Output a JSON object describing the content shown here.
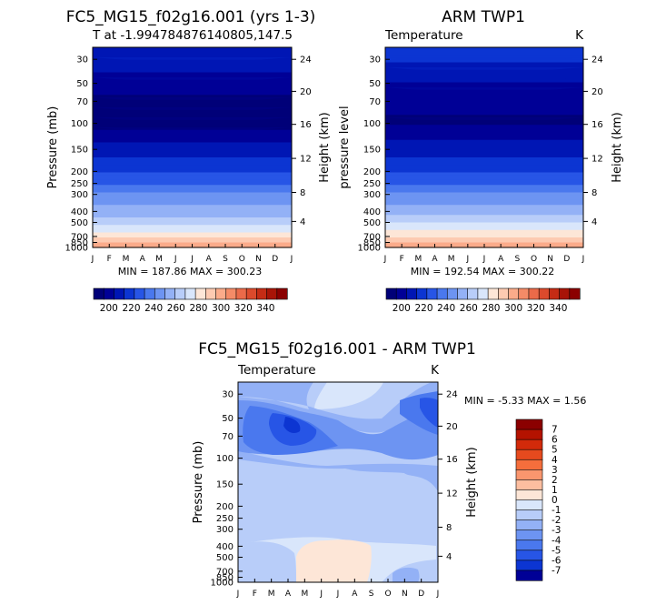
{
  "chart_data": [
    {
      "type": "heatmap",
      "title": "FC5_MG15_f02g16.001 (yrs 1-3)",
      "subtitle": "T at -1.994784876140805,147.5",
      "ylabel": "Pressure (mb)",
      "ylabel_right": "Height (km)",
      "x_ticks": [
        "J",
        "F",
        "M",
        "A",
        "M",
        "J",
        "J",
        "A",
        "S",
        "O",
        "N",
        "D",
        "J"
      ],
      "y_ticks": [
        "30",
        "50",
        "70",
        "100",
        "150",
        "200",
        "250",
        "300",
        "400",
        "500",
        "700",
        "850",
        "1000"
      ],
      "height_ticks": [
        "24",
        "20",
        "16",
        "12",
        "8",
        "4"
      ],
      "ylim": [
        1000,
        20
      ],
      "min_max_text": "MIN = 187.86 MAX = 300.23",
      "min": 187.86,
      "max": 300.23,
      "colorbar_ticks": [
        "200",
        "220",
        "240",
        "260",
        "280",
        "300",
        "320",
        "340"
      ],
      "profile": [
        {
          "p": 20,
          "t": 207
        },
        {
          "p": 30,
          "t": 210
        },
        {
          "p": 50,
          "t": 197
        },
        {
          "p": 70,
          "t": 192
        },
        {
          "p": 100,
          "t": 190
        },
        {
          "p": 150,
          "t": 207
        },
        {
          "p": 200,
          "t": 220
        },
        {
          "p": 250,
          "t": 228
        },
        {
          "p": 300,
          "t": 240
        },
        {
          "p": 400,
          "t": 252
        },
        {
          "p": 500,
          "t": 263
        },
        {
          "p": 700,
          "t": 281
        },
        {
          "p": 850,
          "t": 292
        },
        {
          "p": 1000,
          "t": 300
        }
      ]
    },
    {
      "type": "heatmap",
      "title": "ARM TWP1",
      "subtitle_left": "Temperature",
      "subtitle_right": "K",
      "ylabel": "pressure level",
      "ylabel_right": "Height (km)",
      "x_ticks": [
        "J",
        "F",
        "M",
        "A",
        "M",
        "J",
        "J",
        "A",
        "S",
        "O",
        "N",
        "D",
        "J"
      ],
      "y_ticks": [
        "30",
        "50",
        "70",
        "100",
        "150",
        "200",
        "250",
        "300",
        "400",
        "500",
        "700",
        "850",
        "1000"
      ],
      "height_ticks": [
        "24",
        "20",
        "16",
        "12",
        "8",
        "4"
      ],
      "ylim": [
        1000,
        20
      ],
      "min_max_text": "MIN = 192.54 MAX = 300.22",
      "min": 192.54,
      "max": 300.22,
      "colorbar_ticks": [
        "200",
        "220",
        "240",
        "260",
        "280",
        "300",
        "320",
        "340"
      ],
      "profile": [
        {
          "p": 20,
          "t": 212
        },
        {
          "p": 30,
          "t": 213
        },
        {
          "p": 50,
          "t": 203
        },
        {
          "p": 70,
          "t": 196
        },
        {
          "p": 100,
          "t": 193
        },
        {
          "p": 150,
          "t": 208
        },
        {
          "p": 200,
          "t": 221
        },
        {
          "p": 250,
          "t": 229
        },
        {
          "p": 300,
          "t": 241
        },
        {
          "p": 400,
          "t": 253
        },
        {
          "p": 500,
          "t": 265
        },
        {
          "p": 700,
          "t": 283
        },
        {
          "p": 850,
          "t": 294
        },
        {
          "p": 1000,
          "t": 300
        }
      ]
    },
    {
      "type": "heatmap",
      "title": "FC5_MG15_f02g16.001 - ARM TWP1",
      "subtitle_left": "Temperature",
      "subtitle_right": "K",
      "ylabel": "Pressure (mb)",
      "ylabel_right": "Height (km)",
      "x_ticks": [
        "J",
        "F",
        "M",
        "A",
        "M",
        "J",
        "J",
        "A",
        "S",
        "O",
        "N",
        "D",
        "J"
      ],
      "y_ticks": [
        "30",
        "50",
        "70",
        "100",
        "150",
        "200",
        "250",
        "300",
        "400",
        "500",
        "700",
        "850",
        "1000"
      ],
      "height_ticks": [
        "24",
        "20",
        "16",
        "12",
        "8",
        "4"
      ],
      "ylim": [
        1000,
        20
      ],
      "min_max_text": "MIN =    -5.33 MAX =     1.56",
      "min": -5.33,
      "max": 1.56,
      "colorbar_ticks": [
        "7",
        "6",
        "5",
        "4",
        "3",
        "2",
        "1",
        "0",
        "-1",
        "-2",
        "-3",
        "-4",
        "-5",
        "-6",
        "-7"
      ]
    }
  ],
  "colors": {
    "temperature_scale": [
      "#000078",
      "#000096",
      "#0016b4",
      "#0c35d2",
      "#2755e6",
      "#4a78ee",
      "#6d94f2",
      "#93b1f6",
      "#b8cdf9",
      "#d9e6fb",
      "#fde6d7",
      "#fdcab1",
      "#fbab8a",
      "#f58b67",
      "#eb6a49",
      "#dc4a2c",
      "#c52c15",
      "#a81407",
      "#8b0000"
    ],
    "difference_scale": [
      "#8b0000",
      "#b41200",
      "#d22a0a",
      "#e64a1e",
      "#f56e3c",
      "#fa966e",
      "#fdbea0",
      "#fde6d7",
      "#d9e6fb",
      "#b8cdf9",
      "#93b1f6",
      "#6d94f2",
      "#4a78ee",
      "#2755e6",
      "#0c35d2",
      "#000096"
    ]
  }
}
